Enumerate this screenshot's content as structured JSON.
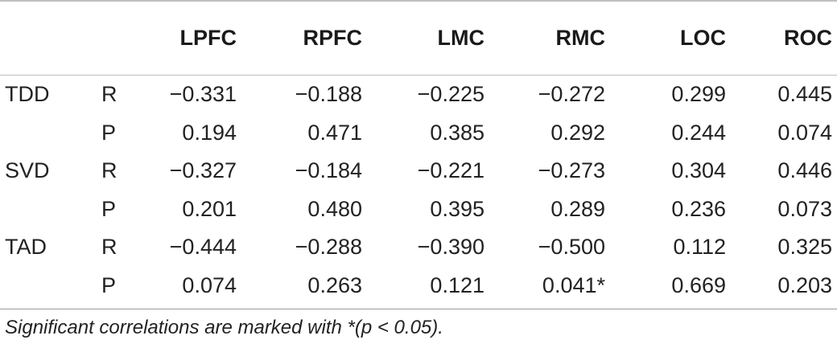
{
  "columns": [
    "",
    "",
    "LPFC",
    "RPFC",
    "LMC",
    "RMC",
    "LOC",
    "ROC"
  ],
  "rows": [
    {
      "group": "TDD",
      "stat": "R",
      "values": [
        "−0.331",
        "−0.188",
        "−0.225",
        "−0.272",
        "0.299",
        "0.445"
      ]
    },
    {
      "group": "",
      "stat": "P",
      "values": [
        "0.194",
        "0.471",
        "0.385",
        "0.292",
        "0.244",
        "0.074"
      ]
    },
    {
      "group": "SVD",
      "stat": "R",
      "values": [
        "−0.327",
        "−0.184",
        "−0.221",
        "−0.273",
        "0.304",
        "0.446"
      ]
    },
    {
      "group": "",
      "stat": "P",
      "values": [
        "0.201",
        "0.480",
        "0.395",
        "0.289",
        "0.236",
        "0.073"
      ]
    },
    {
      "group": "TAD",
      "stat": "R",
      "values": [
        "−0.444",
        "−0.288",
        "−0.390",
        "−0.500",
        "0.112",
        "0.325"
      ]
    },
    {
      "group": "",
      "stat": "P",
      "values": [
        "0.074",
        "0.263",
        "0.121",
        "0.041*",
        "0.669",
        "0.203"
      ]
    }
  ],
  "footnote": "Significant correlations are marked with *(p < 0.05)."
}
